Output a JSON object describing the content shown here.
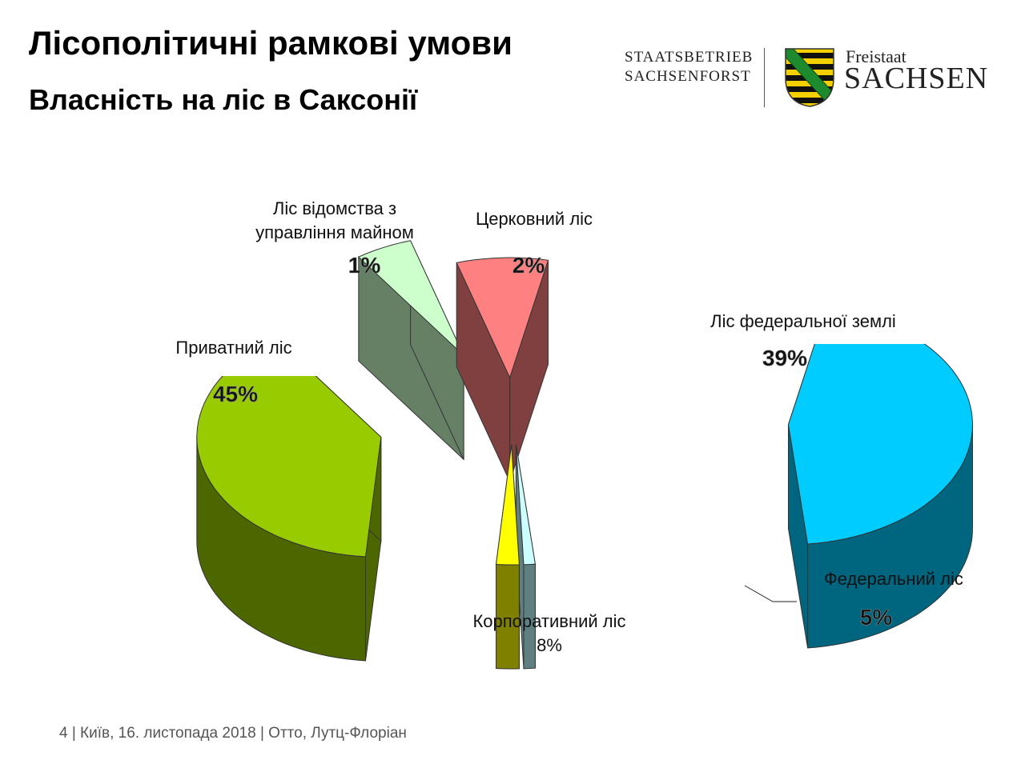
{
  "header": {
    "title": "Лісополітичні рамкові умови",
    "subtitle": "Власність на ліс в Саксонії"
  },
  "logo": {
    "org_line1": "STAATSBETRIEB",
    "org_line2": "SACHSENFORST",
    "freistaat": "Freistaat",
    "sachsen": "SACHSEN",
    "crest_icon": "saxony-coat-of-arms-icon"
  },
  "chart_data": {
    "type": "pie",
    "style": "3d-exploded",
    "slices": [
      {
        "label": "Приватний ліс",
        "value": 45,
        "value_label": "45%",
        "color_top": "#00CCFF",
        "color_side": "#006680"
      },
      {
        "label": "Ліс відомства з управління майном",
        "value": 1,
        "value_label": "1%",
        "color_top": "#CCFFFF",
        "color_side": "#607F80"
      },
      {
        "label": "Церковний ліс",
        "value": 2,
        "value_label": "2%",
        "color_top": "#FFFF00",
        "color_side": "#808000"
      },
      {
        "label": "Ліс федеральної землі",
        "value": 39,
        "value_label": "39%",
        "color_top": "#99CC00",
        "color_side": "#4C6600"
      },
      {
        "label": "Федеральний ліс",
        "value": 5,
        "value_label": "5%",
        "color_top": "#CCFFCC",
        "color_side": "#668066"
      },
      {
        "label": "Корпоративний ліс",
        "value": 8,
        "value_label": "8%",
        "color_top": "#FF8080",
        "color_side": "#804040"
      }
    ]
  },
  "footer": {
    "text": "4  | Київ,  16. листопада 2018  |  Отто, Лутц-Флоріан"
  }
}
